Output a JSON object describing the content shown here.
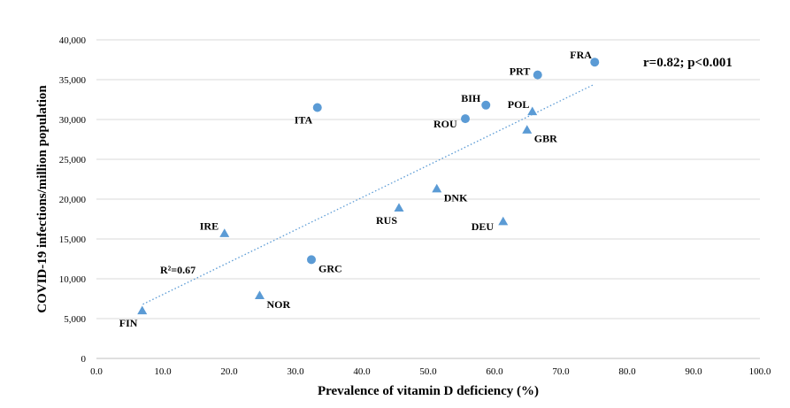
{
  "chart_data": {
    "type": "scatter",
    "xlabel": "Prevalence of vitamin D deficiency (%)",
    "ylabel": "COVID-19 infections/million population",
    "xlim": [
      0,
      100
    ],
    "ylim": [
      0,
      40000
    ],
    "x_ticks": [
      "0.0",
      "10.0",
      "20.0",
      "30.0",
      "40.0",
      "50.0",
      "60.0",
      "70.0",
      "80.0",
      "90.0",
      "100.0"
    ],
    "y_ticks": [
      "0",
      "5,000",
      "10,000",
      "15,000",
      "20,000",
      "25,000",
      "30,000",
      "35,000",
      "40,000"
    ],
    "grid": "horizontal",
    "annotation": "r=0.82; p<0.001",
    "r2_label": "R²=0.67",
    "colors": {
      "marker": "#5b9bd5",
      "trendline": "#5b9bd5",
      "grid": "#d9d9d9"
    },
    "trendline": {
      "style": "dotted",
      "x": [
        7,
        75
      ],
      "y": [
        6800,
        34400
      ]
    },
    "points": [
      {
        "label": "FIN",
        "x": 6.9,
        "y": 6000,
        "marker": "triangle",
        "label_pos": "below-left"
      },
      {
        "label": "IRE",
        "x": 19.3,
        "y": 15700,
        "marker": "triangle",
        "label_pos": "above-left"
      },
      {
        "label": "NOR",
        "x": 24.6,
        "y": 7900,
        "marker": "triangle",
        "label_pos": "right-below"
      },
      {
        "label": "GRC",
        "x": 32.4,
        "y": 12400,
        "marker": "circle",
        "label_pos": "right-below"
      },
      {
        "label": "ITA",
        "x": 33.3,
        "y": 31500,
        "marker": "circle",
        "label_pos": "below-left"
      },
      {
        "label": "RUS",
        "x": 45.6,
        "y": 18900,
        "marker": "triangle",
        "label_pos": "below-left"
      },
      {
        "label": "DNK",
        "x": 51.3,
        "y": 21300,
        "marker": "triangle",
        "label_pos": "right-below"
      },
      {
        "label": "ROU",
        "x": 55.6,
        "y": 30100,
        "marker": "circle",
        "label_pos": "left-below"
      },
      {
        "label": "BIH",
        "x": 58.7,
        "y": 31800,
        "marker": "circle",
        "label_pos": "above-left"
      },
      {
        "label": "DEU",
        "x": 61.3,
        "y": 17200,
        "marker": "triangle",
        "label_pos": "left-below"
      },
      {
        "label": "GBR",
        "x": 64.9,
        "y": 28700,
        "marker": "triangle",
        "label_pos": "right-below"
      },
      {
        "label": "POL",
        "x": 65.7,
        "y": 31000,
        "marker": "triangle",
        "label_pos": "above-left"
      },
      {
        "label": "PRT",
        "x": 66.5,
        "y": 35600,
        "marker": "circle",
        "label_pos": "left"
      },
      {
        "label": "FRA",
        "x": 75.1,
        "y": 37200,
        "marker": "circle",
        "label_pos": "above-left"
      }
    ]
  }
}
